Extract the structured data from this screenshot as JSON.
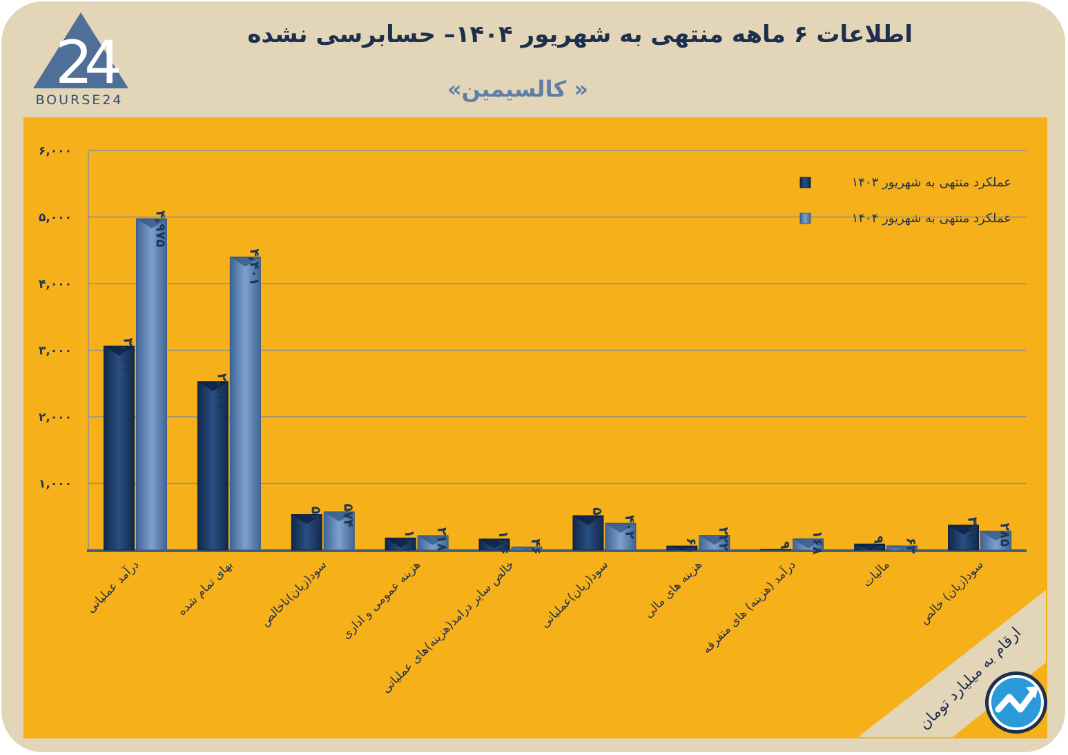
{
  "header": {
    "title": "اطلاعات ۶ ماهه منتهی به شهریور  ۱۴۰۴– حسابرسی نشده",
    "subtitle": "« کالسیمین»",
    "logo_text": "BOURSE24",
    "logo_icon": "triangle-24-logo"
  },
  "colors": {
    "series_1403": "#1d3c66",
    "series_1404": "#5d82b3",
    "panel": "#f6b019",
    "frame": "#e2d5b8"
  },
  "note": "ارقام به میلیارد تومان",
  "brand_icon": "trend-arrow-icon",
  "chart_data": {
    "type": "bar",
    "title": "اطلاعات ۶ ماهه منتهی به شهریور  ۱۴۰۴– حسابرسی نشده",
    "ylim": [
      0,
      6000
    ],
    "yticks": [
      1000,
      2000,
      3000,
      4000,
      5000,
      6000
    ],
    "ytick_labels": [
      "۱,۰۰۰",
      "۲,۰۰۰",
      "۳,۰۰۰",
      "۴,۰۰۰",
      "۵,۰۰۰",
      "۶,۰۰۰"
    ],
    "grid": true,
    "legend_position": "top-right",
    "categories": [
      "درآمد عملیاتی",
      "بهای تمام شده",
      "سود(زیان)ناخالص",
      "هزینه عمومی و اداری",
      "خالص سایر درامد(هزینه)های عملیاتی",
      "سود(زیان)عملیاتی",
      "هزینه های مالی",
      "درآمد (هزینه) های متفرقه",
      "مالیات",
      "سود(زیان) خالص"
    ],
    "series": [
      {
        "name": "عملکرد منتهی به شهریور ۱۴۰۳",
        "values": [
          3064,
          2531,
          533,
          180,
          166,
          517,
          61,
          9,
          91,
          374
        ],
        "labels": [
          "۳,۰۶۴",
          "۲,۵۳۱",
          "۵۳۳",
          "۱۸۰",
          "۱۶۶",
          "۵۱۷",
          "۶۱",
          "۹",
          "۹۱",
          "۳۷۴"
        ]
      },
      {
        "name": "عملکرد منتهی به شهریور ۱۴۰۴",
        "values": [
          4975,
          4401,
          574,
          218,
          46,
          402,
          222,
          168,
          63,
          285
        ],
        "labels": [
          "۴,۹۷۵",
          "۴,۴۰۱",
          "۵۷۴",
          "۲۱۸",
          "۴۶",
          "۴۰۲",
          "۲۲۲",
          "۱۶۸",
          "۶۳",
          "۲۸۵"
        ]
      }
    ]
  }
}
